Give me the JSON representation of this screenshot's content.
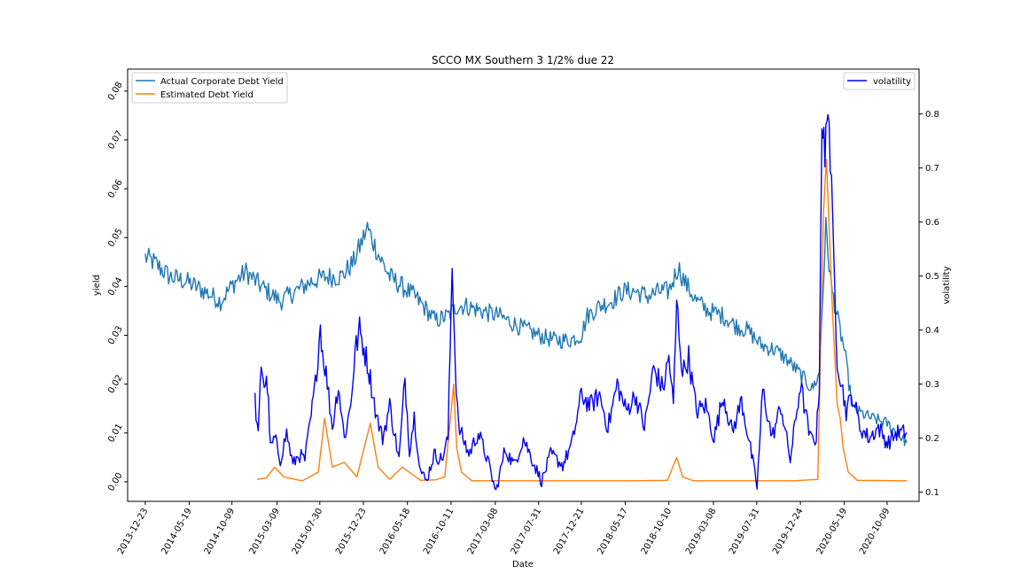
{
  "chart_data": {
    "type": "line",
    "title": "SCCO MX Southern 3 1/2% due 22",
    "xlabel": "Date",
    "ylabel_left": "yield",
    "ylabel_right": "volatility",
    "xlim": [
      "2013-10-25",
      "2021-01-24"
    ],
    "ylim_left": [
      -0.004,
      0.0845
    ],
    "ylim_right": [
      0.083,
      0.883
    ],
    "x_ticks": [
      "2013-12-23",
      "2014-05-19",
      "2014-10-09",
      "2015-03-09",
      "2015-07-30",
      "2015-12-23",
      "2016-05-18",
      "2016-10-11",
      "2017-03-08",
      "2017-07-31",
      "2017-12-21",
      "2018-05-17",
      "2018-10-10",
      "2019-03-08",
      "2019-07-31",
      "2019-12-24",
      "2020-05-19",
      "2020-10-09"
    ],
    "y_ticks_left": [
      "0.00",
      "0.01",
      "0.02",
      "0.03",
      "0.04",
      "0.05",
      "0.06",
      "0.07",
      "0.08"
    ],
    "y_ticks_right": [
      "0.1",
      "0.2",
      "0.3",
      "0.4",
      "0.5",
      "0.6",
      "0.7",
      "0.8"
    ],
    "legend_left": {
      "placement": "upper-left",
      "entries": [
        "Actual Corporate Debt Yield",
        "Estimated Debt Yield"
      ]
    },
    "legend_right": {
      "placement": "upper-right",
      "entries": [
        "volatility"
      ]
    },
    "grid": false,
    "colors": {
      "actual": "#1f77b4",
      "estimated": "#ff7f0e",
      "volatility": "#0000ee"
    },
    "series": [
      {
        "name": "Actual Corporate Debt Yield",
        "axis": "left",
        "x": [
          "2013-12-23",
          "2014-01-20",
          "2014-03-15",
          "2014-05-10",
          "2014-07-10",
          "2014-09-01",
          "2014-10-20",
          "2014-11-25",
          "2015-01-15",
          "2015-03-20",
          "2015-05-10",
          "2015-07-01",
          "2015-08-20",
          "2015-10-10",
          "2015-11-20",
          "2015-12-23",
          "2016-01-05",
          "2016-02-15",
          "2016-03-20",
          "2016-05-01",
          "2016-06-10",
          "2016-07-10",
          "2016-08-20",
          "2016-10-01",
          "2016-11-01",
          "2016-12-01",
          "2017-01-20",
          "2017-03-20",
          "2017-05-20",
          "2017-07-31",
          "2017-09-20",
          "2017-11-10",
          "2017-12-21",
          "2018-01-10",
          "2018-02-20",
          "2018-04-01",
          "2018-05-10",
          "2018-06-20",
          "2018-08-01",
          "2018-09-10",
          "2018-10-10",
          "2018-11-10",
          "2018-12-01",
          "2019-01-10",
          "2019-02-20",
          "2019-04-10",
          "2019-05-20",
          "2019-07-01",
          "2019-08-15",
          "2019-10-01",
          "2019-11-10",
          "2019-12-24",
          "2020-02-01",
          "2020-02-25",
          "2020-03-18",
          "2020-04-05",
          "2020-05-01",
          "2020-05-19",
          "2020-06-15",
          "2020-07-15",
          "2020-08-20",
          "2020-10-09",
          "2020-11-10",
          "2020-12-14"
        ],
        "values": [
          0.046,
          0.045,
          0.042,
          0.041,
          0.039,
          0.037,
          0.041,
          0.043,
          0.04,
          0.037,
          0.039,
          0.041,
          0.042,
          0.042,
          0.045,
          0.05,
          0.052,
          0.046,
          0.042,
          0.04,
          0.038,
          0.036,
          0.033,
          0.034,
          0.036,
          0.036,
          0.035,
          0.034,
          0.032,
          0.03,
          0.029,
          0.029,
          0.03,
          0.034,
          0.036,
          0.037,
          0.039,
          0.039,
          0.038,
          0.039,
          0.039,
          0.044,
          0.041,
          0.037,
          0.035,
          0.034,
          0.032,
          0.031,
          0.028,
          0.027,
          0.025,
          0.022,
          0.019,
          0.022,
          0.052,
          0.04,
          0.032,
          0.027,
          0.015,
          0.014,
          0.013,
          0.012,
          0.01,
          0.008
        ]
      },
      {
        "name": "Estimated Debt Yield",
        "axis": "left",
        "x": [
          "2015-01-01",
          "2015-02-01",
          "2015-03-01",
          "2015-04-01",
          "2015-06-01",
          "2015-07-25",
          "2015-08-15",
          "2015-09-10",
          "2015-10-20",
          "2015-12-01",
          "2016-01-15",
          "2016-02-10",
          "2016-03-20",
          "2016-05-01",
          "2016-07-01",
          "2016-08-20",
          "2016-09-20",
          "2016-10-20",
          "2016-10-30",
          "2016-11-15",
          "2016-12-20",
          "2017-06-01",
          "2018-01-01",
          "2018-06-01",
          "2018-10-05",
          "2018-11-05",
          "2018-11-25",
          "2019-01-01",
          "2019-06-01",
          "2019-12-01",
          "2020-02-20",
          "2020-03-10",
          "2020-03-20",
          "2020-04-10",
          "2020-04-25",
          "2020-05-05",
          "2020-05-15",
          "2020-06-01",
          "2020-07-01",
          "2020-12-14"
        ],
        "values": [
          0.0005,
          0.0008,
          0.003,
          0.001,
          0.0002,
          0.002,
          0.013,
          0.003,
          0.004,
          0.001,
          0.012,
          0.003,
          0.0005,
          0.003,
          0.0003,
          0.0004,
          0.001,
          0.02,
          0.007,
          0.002,
          0.0002,
          0.0002,
          0.0002,
          0.0002,
          0.0003,
          0.005,
          0.001,
          0.0002,
          0.0002,
          0.0002,
          0.0005,
          0.055,
          0.066,
          0.034,
          0.016,
          0.013,
          0.007,
          0.002,
          0.0003,
          0.0002
        ]
      },
      {
        "name": "volatility",
        "axis": "right",
        "x": [
          "2014-12-25",
          "2015-01-05",
          "2015-01-15",
          "2015-01-25",
          "2015-02-05",
          "2015-02-15",
          "2015-03-01",
          "2015-03-20",
          "2015-04-10",
          "2015-05-01",
          "2015-05-20",
          "2015-06-10",
          "2015-07-01",
          "2015-07-15",
          "2015-08-01",
          "2015-08-08",
          "2015-08-20",
          "2015-09-10",
          "2015-09-30",
          "2015-10-20",
          "2015-11-10",
          "2015-11-25",
          "2015-12-10",
          "2016-01-05",
          "2016-01-15",
          "2016-02-05",
          "2016-02-25",
          "2016-03-20",
          "2016-04-20",
          "2016-05-10",
          "2016-05-25",
          "2016-06-10",
          "2016-07-01",
          "2016-07-20",
          "2016-08-15",
          "2016-09-10",
          "2016-10-01",
          "2016-10-15",
          "2016-10-25",
          "2016-11-05",
          "2016-11-20",
          "2016-12-10",
          "2017-01-10",
          "2017-02-10",
          "2017-03-10",
          "2017-04-10",
          "2017-05-10",
          "2017-06-10",
          "2017-07-10",
          "2017-08-10",
          "2017-09-10",
          "2017-10-20",
          "2017-11-20",
          "2017-12-21",
          "2018-01-20",
          "2018-02-20",
          "2018-03-20",
          "2018-04-20",
          "2018-05-20",
          "2018-06-20",
          "2018-07-20",
          "2018-08-20",
          "2018-09-20",
          "2018-10-10",
          "2018-10-25",
          "2018-11-05",
          "2018-11-25",
          "2018-12-15",
          "2019-01-10",
          "2019-02-10",
          "2019-03-10",
          "2019-04-10",
          "2019-05-10",
          "2019-06-10",
          "2019-07-10",
          "2019-08-01",
          "2019-08-20",
          "2019-09-20",
          "2019-10-20",
          "2019-11-20",
          "2019-12-24",
          "2020-01-25",
          "2020-02-15",
          "2020-02-25",
          "2020-03-05",
          "2020-03-15",
          "2020-03-25",
          "2020-04-10",
          "2020-04-25",
          "2020-05-10",
          "2020-05-25",
          "2020-06-15",
          "2020-07-10",
          "2020-08-10",
          "2020-09-10",
          "2020-10-10",
          "2020-11-10",
          "2020-12-14"
        ],
        "values": [
          0.27,
          0.2,
          0.34,
          0.3,
          0.3,
          0.18,
          0.2,
          0.16,
          0.21,
          0.15,
          0.17,
          0.16,
          0.24,
          0.3,
          0.41,
          0.36,
          0.32,
          0.22,
          0.3,
          0.2,
          0.26,
          0.36,
          0.4,
          0.34,
          0.31,
          0.24,
          0.2,
          0.26,
          0.16,
          0.31,
          0.18,
          0.24,
          0.14,
          0.12,
          0.17,
          0.16,
          0.2,
          0.53,
          0.34,
          0.22,
          0.2,
          0.17,
          0.21,
          0.16,
          0.1,
          0.18,
          0.15,
          0.2,
          0.16,
          0.12,
          0.17,
          0.15,
          0.19,
          0.28,
          0.26,
          0.28,
          0.22,
          0.3,
          0.25,
          0.28,
          0.22,
          0.33,
          0.29,
          0.35,
          0.26,
          0.45,
          0.32,
          0.35,
          0.25,
          0.26,
          0.2,
          0.28,
          0.21,
          0.27,
          0.18,
          0.11,
          0.29,
          0.2,
          0.26,
          0.16,
          0.3,
          0.2,
          0.2,
          0.3,
          0.81,
          0.7,
          0.85,
          0.58,
          0.35,
          0.3,
          0.25,
          0.28,
          0.22,
          0.2,
          0.22,
          0.19,
          0.21,
          0.21
        ]
      }
    ]
  }
}
